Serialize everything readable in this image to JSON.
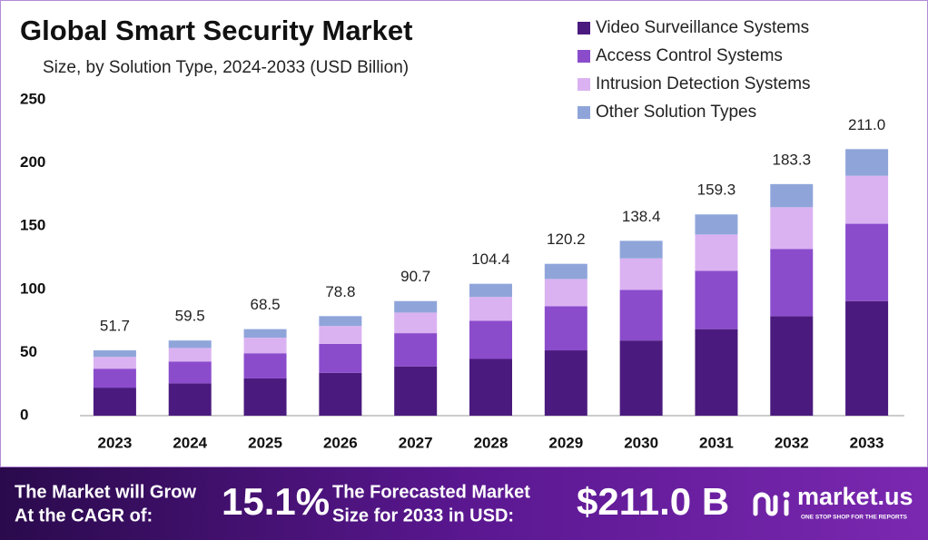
{
  "chart_data": {
    "type": "stacked_bar",
    "title": "Global Smart Security Market",
    "subtitle": "Size, by Solution Type, 2024-2033 (USD Billion)",
    "categories": [
      "2023",
      "2024",
      "2025",
      "2026",
      "2027",
      "2028",
      "2029",
      "2030",
      "2031",
      "2032",
      "2033"
    ],
    "series": [
      {
        "name": "Video Surveillance Systems",
        "color": "#4b1a7e",
        "values": [
          22.2,
          25.6,
          29.5,
          33.9,
          39.0,
          44.9,
          51.7,
          59.5,
          68.5,
          78.8,
          90.7
        ]
      },
      {
        "name": "Access Control Systems",
        "color": "#8b4ccc",
        "values": [
          15.0,
          17.3,
          19.9,
          22.9,
          26.3,
          30.3,
          34.9,
          40.1,
          46.2,
          53.2,
          61.2
        ]
      },
      {
        "name": "Intrusion Detection Systems",
        "color": "#dbb2f1",
        "values": [
          9.3,
          10.7,
          12.3,
          14.2,
          16.3,
          18.8,
          21.6,
          24.9,
          28.7,
          33.0,
          38.0
        ]
      },
      {
        "name": "Other Solution Types",
        "color": "#8fa5da",
        "values": [
          5.2,
          5.9,
          6.8,
          7.8,
          9.1,
          10.4,
          12.0,
          13.9,
          15.9,
          18.3,
          21.1
        ]
      }
    ],
    "totals": [
      51.7,
      59.5,
      68.5,
      78.8,
      90.7,
      104.4,
      120.2,
      138.4,
      159.3,
      183.3,
      211.0
    ],
    "total_labels": [
      "51.7",
      "59.5",
      "68.5",
      "78.8",
      "90.7",
      "104.4",
      "120.2",
      "138.4",
      "159.3",
      "183.3",
      "211.0"
    ],
    "ylim": [
      0,
      250
    ],
    "yticks": [
      0,
      50,
      100,
      150,
      200,
      250
    ],
    "grid": false,
    "legend": "top-right"
  },
  "footer": {
    "cagr_text": [
      "The Market will Grow",
      "At the CAGR of:"
    ],
    "cagr": "15.1%",
    "forecast_text": [
      "The Forecasted Market",
      "Size for 2033 in USD:"
    ],
    "forecast": "$211.0 B",
    "brand": "market.us",
    "tagline": "ONE STOP SHOP FOR THE REPORTS"
  }
}
